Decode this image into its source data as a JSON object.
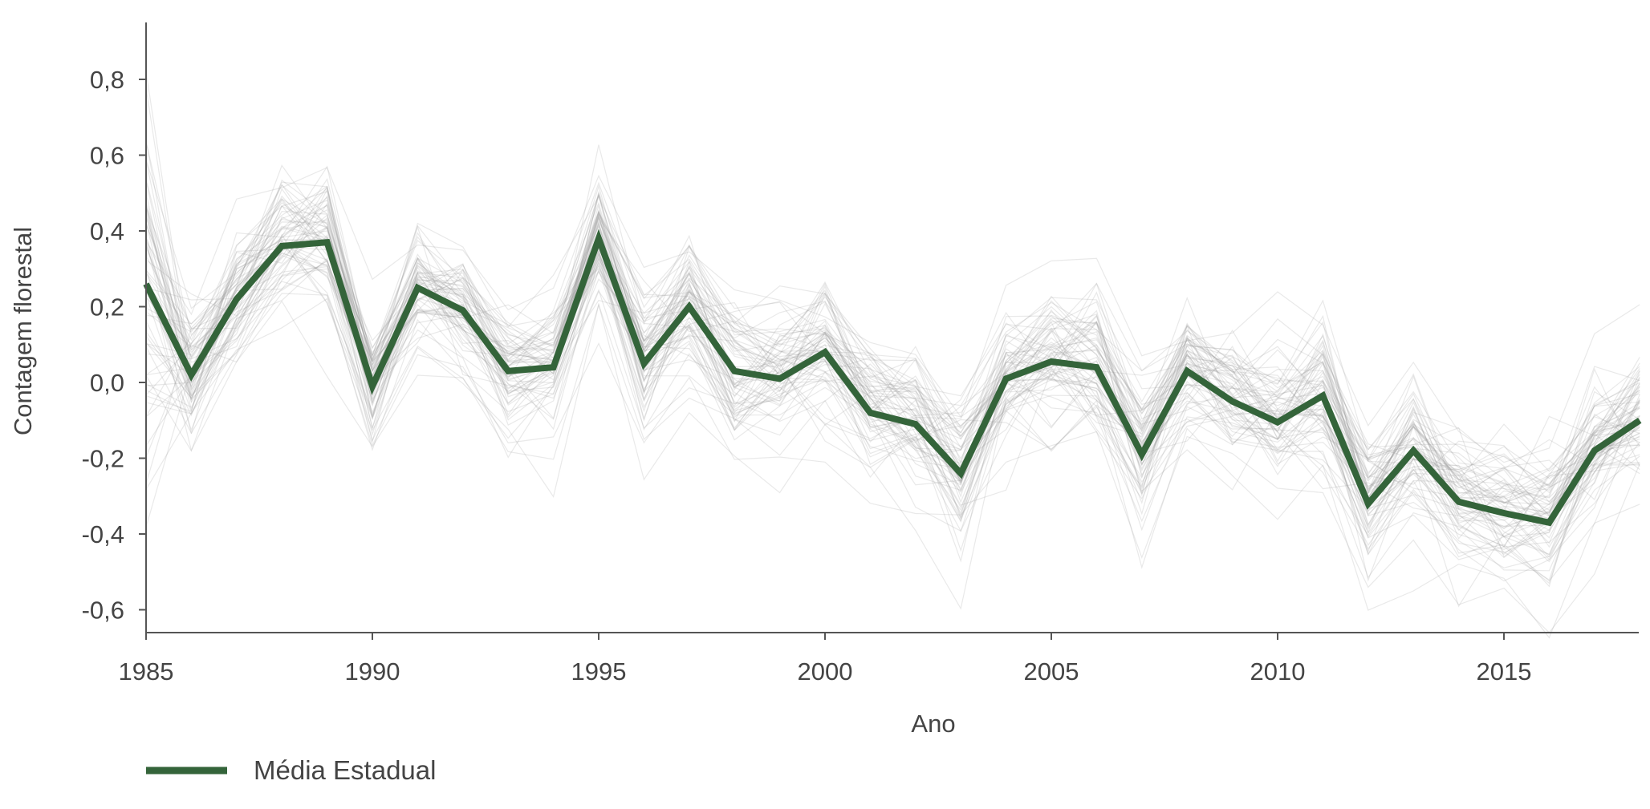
{
  "chart_data": {
    "type": "line",
    "xlabel": "Ano",
    "ylabel": "Contagem florestal",
    "xlim": [
      1985,
      2018
    ],
    "ylim": [
      -0.66,
      0.95
    ],
    "x_ticks": [
      1985,
      1990,
      1995,
      2000,
      2005,
      2010,
      2015
    ],
    "y_ticks": [
      {
        "value": 0.8,
        "label": "0,8"
      },
      {
        "value": 0.6,
        "label": "0,6"
      },
      {
        "value": 0.4,
        "label": "0,4"
      },
      {
        "value": 0.2,
        "label": "0,2"
      },
      {
        "value": 0.0,
        "label": "0,0"
      },
      {
        "value": -0.2,
        "label": "-0,2"
      },
      {
        "value": -0.4,
        "label": "-0,4"
      },
      {
        "value": -0.6,
        "label": "-0,6"
      }
    ],
    "grid": false,
    "legend_position": "bottom-left",
    "x": [
      1985,
      1986,
      1987,
      1988,
      1989,
      1990,
      1991,
      1992,
      1993,
      1994,
      1995,
      1996,
      1997,
      1998,
      1999,
      2000,
      2001,
      2002,
      2003,
      2004,
      2005,
      2006,
      2007,
      2008,
      2009,
      2010,
      2011,
      2012,
      2013,
      2014,
      2015,
      2016,
      2017,
      2018
    ],
    "series": [
      {
        "name": "Média Estadual",
        "color": "#34643a",
        "values": [
          0.26,
          0.02,
          0.22,
          0.36,
          0.37,
          -0.01,
          0.25,
          0.19,
          0.03,
          0.04,
          0.38,
          0.05,
          0.2,
          0.03,
          0.01,
          0.08,
          -0.08,
          -0.11,
          -0.24,
          0.01,
          0.055,
          0.04,
          -0.19,
          0.03,
          -0.05,
          -0.105,
          -0.035,
          -0.32,
          -0.18,
          -0.315,
          -0.345,
          -0.37,
          -0.18,
          -0.1
        ]
      }
    ],
    "background_series": {
      "color": "#9a9a9a",
      "count": 70
    }
  }
}
